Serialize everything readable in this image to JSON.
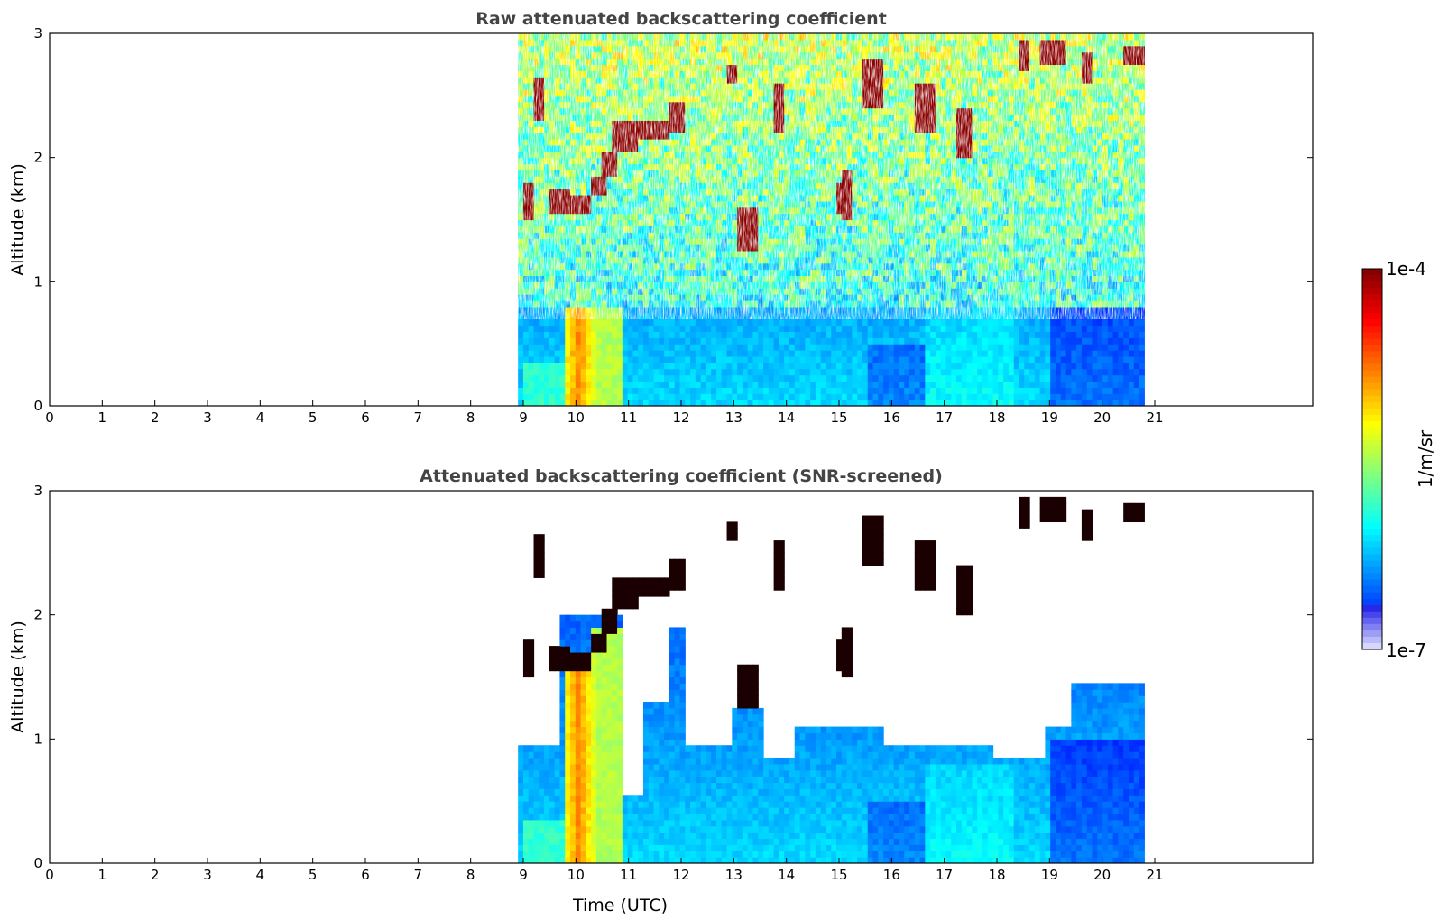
{
  "chart_data": [
    {
      "type": "heatmap",
      "title": "Raw attenuated backscattering coefficient",
      "xlabel": "",
      "ylabel": "Altitude (km)",
      "xlim": [
        0,
        24
      ],
      "ylim": [
        0,
        3
      ],
      "x_ticks": [
        0,
        1,
        2,
        3,
        4,
        5,
        6,
        7,
        8,
        9,
        10,
        11,
        12,
        13,
        14,
        15,
        16,
        17,
        18,
        19,
        20,
        21
      ],
      "y_ticks": [
        0,
        1,
        2,
        3
      ],
      "data_time_range": [
        8.9,
        20.8
      ],
      "snr_screened": false
    },
    {
      "type": "heatmap",
      "title": "Attenuated backscattering coefficient (SNR-screened)",
      "xlabel": "Time (UTC)",
      "ylabel": "Altitude (km)",
      "xlim": [
        0,
        24
      ],
      "ylim": [
        0,
        3
      ],
      "x_ticks": [
        0,
        1,
        2,
        3,
        4,
        5,
        6,
        7,
        8,
        9,
        10,
        11,
        12,
        13,
        14,
        15,
        16,
        17,
        18,
        19,
        20,
        21
      ],
      "y_ticks": [
        0,
        1,
        2,
        3
      ],
      "data_time_range": [
        8.9,
        20.8
      ],
      "snr_screened": true
    }
  ],
  "colorbar": {
    "label": "1/m/sr",
    "min_label": "1e-7",
    "max_label": "1e-4",
    "scale": "log",
    "colormap": "jet"
  }
}
